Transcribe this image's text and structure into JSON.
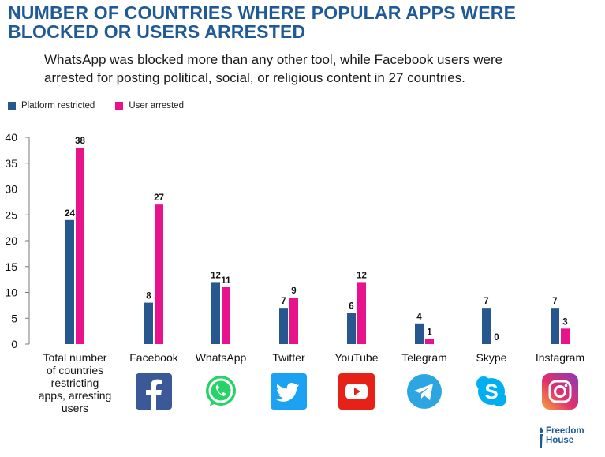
{
  "title_line1": "NUMBER OF COUNTRIES WHERE POPULAR APPS WERE",
  "title_line2": "BLOCKED OR USERS ARRESTED",
  "subtitle_line1": "WhatsApp was blocked more than any other tool, while Facebook users were",
  "subtitle_line2": "arrested for posting political, social, or religious content in 27 countries.",
  "footer": {
    "brand_line1": "Freedom",
    "brand_line2": "House"
  },
  "logos": [
    {
      "app": "Facebook",
      "icon": "facebook-icon"
    },
    {
      "app": "WhatsApp",
      "icon": "whatsapp-icon"
    },
    {
      "app": "Twitter",
      "icon": "twitter-icon"
    },
    {
      "app": "YouTube",
      "icon": "youtube-icon"
    },
    {
      "app": "Telegram",
      "icon": "telegram-icon"
    },
    {
      "app": "Skype",
      "icon": "skype-icon"
    },
    {
      "app": "Instagram",
      "icon": "instagram-icon"
    }
  ],
  "chart_data": {
    "type": "bar",
    "categories": [
      "Total number of countries restricting apps, arresting users",
      "Facebook",
      "WhatsApp",
      "Twitter",
      "YouTube",
      "Telegram",
      "Skype",
      "Instagram"
    ],
    "category_lines": [
      [
        "Total number",
        "of countries",
        "restricting",
        "apps, arresting",
        "users"
      ],
      [
        "Facebook"
      ],
      [
        "WhatsApp"
      ],
      [
        "Twitter"
      ],
      [
        "YouTube"
      ],
      [
        "Telegram"
      ],
      [
        "Skype"
      ],
      [
        "Instagram"
      ]
    ],
    "series": [
      {
        "name": "Platform restricted",
        "color": "#27578f",
        "values": [
          24,
          8,
          12,
          7,
          6,
          4,
          7,
          7
        ]
      },
      {
        "name": "User arrested",
        "color": "#e8128c",
        "values": [
          38,
          27,
          11,
          9,
          12,
          1,
          0,
          3
        ]
      }
    ],
    "ylim": [
      0,
      40
    ],
    "yticks": [
      0,
      5,
      10,
      15,
      20,
      25,
      30,
      35,
      40
    ],
    "legend_position": "top-left",
    "grid": false
  }
}
